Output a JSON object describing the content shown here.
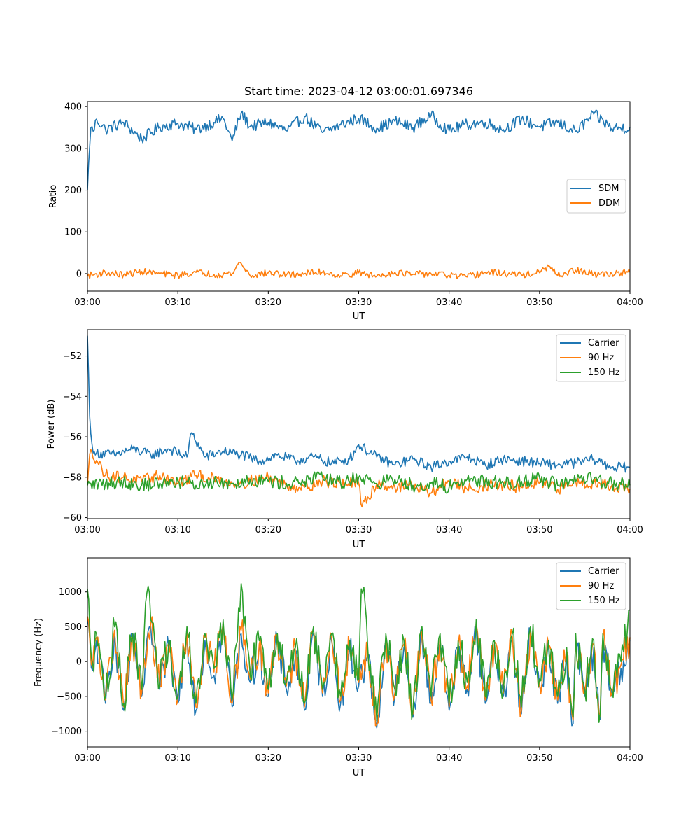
{
  "chart_data": [
    {
      "type": "line",
      "title": "Start time: 2023-04-12 03:00:01.697346",
      "xlabel": "UT",
      "ylabel": "Ratio",
      "xlim": [
        "03:00",
        "04:00"
      ],
      "ylim": [
        -42,
        412
      ],
      "xticks": [
        "03:00",
        "03:10",
        "03:20",
        "03:30",
        "03:40",
        "03:50",
        "04:00"
      ],
      "yticks": [
        0,
        100,
        200,
        300,
        400
      ],
      "ytick_labels": [
        "0",
        "100",
        "200",
        "300",
        "400"
      ],
      "legend_position": "center-right",
      "grid": false,
      "series": [
        {
          "name": "SDM",
          "color": "#1f77b4",
          "x": [
            "03:00",
            "03:00:20",
            "03:00:40",
            "03:01",
            "03:02",
            "03:04",
            "03:06",
            "03:08",
            "03:10",
            "03:12",
            "03:14",
            "03:15",
            "03:16",
            "03:17",
            "03:18",
            "03:20",
            "03:22",
            "03:24",
            "03:26",
            "03:28",
            "03:30",
            "03:32",
            "03:34",
            "03:36",
            "03:38",
            "03:40",
            "03:42",
            "03:44",
            "03:46",
            "03:48",
            "03:50",
            "03:52",
            "03:54",
            "03:56",
            "03:58",
            "04:00"
          ],
          "values": [
            200,
            350,
            340,
            370,
            345,
            362,
            322,
            352,
            360,
            345,
            362,
            372,
            318,
            385,
            352,
            362,
            342,
            376,
            338,
            356,
            372,
            348,
            365,
            350,
            378,
            342,
            358,
            362,
            345,
            370,
            352,
            362,
            340,
            382,
            348,
            350
          ],
          "noise": 14
        },
        {
          "name": "DDM",
          "color": "#ff7f0e",
          "x": [
            "03:00",
            "03:02",
            "03:04",
            "03:06",
            "03:08",
            "03:10",
            "03:12",
            "03:14",
            "03:16",
            "03:16:50",
            "03:18",
            "03:20",
            "03:22",
            "03:24",
            "03:26",
            "03:28",
            "03:30",
            "03:32",
            "03:34",
            "03:36",
            "03:38",
            "03:40",
            "03:42",
            "03:44",
            "03:46",
            "03:48",
            "03:50",
            "03:51",
            "03:52",
            "03:54",
            "03:56",
            "03:58",
            "04:00"
          ],
          "values": [
            -5,
            2,
            -3,
            5,
            0,
            -4,
            3,
            -2,
            0,
            28,
            -5,
            2,
            -3,
            0,
            4,
            -5,
            2,
            -6,
            3,
            -2,
            0,
            -4,
            -8,
            3,
            0,
            -3,
            2,
            18,
            -5,
            8,
            -2,
            0,
            3
          ],
          "noise": 8
        }
      ]
    },
    {
      "type": "line",
      "title": "",
      "xlabel": "UT",
      "ylabel": "Power (dB)",
      "xlim": [
        "03:00",
        "04:00"
      ],
      "ylim": [
        -60.05,
        -50.7
      ],
      "xticks": [
        "03:00",
        "03:10",
        "03:20",
        "03:30",
        "03:40",
        "03:50",
        "04:00"
      ],
      "yticks": [
        -60,
        -58,
        -56,
        -54,
        -52
      ],
      "ytick_labels": [
        "−60",
        "−58",
        "−56",
        "−54",
        "−52"
      ],
      "legend_position": "top-right",
      "grid": false,
      "series": [
        {
          "name": "Carrier",
          "color": "#1f77b4",
          "x": [
            "03:00",
            "03:00:15",
            "03:00:40",
            "03:01",
            "03:03",
            "03:05",
            "03:07",
            "03:09",
            "03:11",
            "03:11:30",
            "03:13",
            "03:15",
            "03:17",
            "03:19",
            "03:21",
            "03:23",
            "03:25",
            "03:27",
            "03:29",
            "03:30",
            "03:32",
            "03:34",
            "03:36",
            "03:38",
            "03:40",
            "03:42",
            "03:44",
            "03:46",
            "03:48",
            "03:50",
            "03:52",
            "03:54",
            "03:56",
            "03:58",
            "04:00"
          ],
          "values": [
            -51.0,
            -55.0,
            -57.0,
            -56.8,
            -56.9,
            -56.6,
            -56.9,
            -56.6,
            -57.0,
            -55.8,
            -57.0,
            -56.7,
            -56.9,
            -57.2,
            -56.9,
            -57.2,
            -57.0,
            -57.3,
            -57.1,
            -56.4,
            -57.0,
            -57.4,
            -57.1,
            -57.5,
            -57.2,
            -57.0,
            -57.4,
            -57.1,
            -57.2,
            -57.3,
            -57.4,
            -57.3,
            -57.1,
            -57.5,
            -57.5
          ],
          "noise": 0.25
        },
        {
          "name": "90 Hz",
          "color": "#ff7f0e",
          "x": [
            "03:00",
            "03:00:20",
            "03:02",
            "03:04",
            "03:06",
            "03:08",
            "03:10",
            "03:12",
            "03:14",
            "03:16",
            "03:18",
            "03:20",
            "03:22",
            "03:24",
            "03:26",
            "03:28",
            "03:30",
            "03:30:20",
            "03:32",
            "03:34",
            "03:36",
            "03:38",
            "03:40",
            "03:42",
            "03:44",
            "03:46",
            "03:48",
            "03:50",
            "03:52",
            "03:54",
            "03:56",
            "03:58",
            "04:00"
          ],
          "values": [
            -58.4,
            -56.6,
            -57.9,
            -58.0,
            -58.2,
            -57.9,
            -58.3,
            -57.9,
            -58.1,
            -58.3,
            -58.2,
            -58.0,
            -58.4,
            -58.5,
            -58.2,
            -58.3,
            -58.3,
            -59.5,
            -58.3,
            -58.5,
            -58.4,
            -58.8,
            -58.2,
            -58.6,
            -58.4,
            -58.4,
            -58.5,
            -58.3,
            -58.6,
            -58.2,
            -58.3,
            -58.4,
            -58.6
          ],
          "noise": 0.3
        },
        {
          "name": "150 Hz",
          "color": "#2ca02c",
          "x": [
            "03:00",
            "03:02",
            "03:04",
            "03:06",
            "03:08",
            "03:10",
            "03:12",
            "03:14",
            "03:16",
            "03:18",
            "03:20",
            "03:22",
            "03:24",
            "03:26",
            "03:28",
            "03:30",
            "03:32",
            "03:34",
            "03:36",
            "03:38",
            "03:40",
            "03:42",
            "03:44",
            "03:46",
            "03:48",
            "03:50",
            "03:52",
            "03:54",
            "03:56",
            "03:58",
            "04:00"
          ],
          "values": [
            -58.4,
            -58.3,
            -58.2,
            -58.4,
            -58.3,
            -58.2,
            -58.4,
            -58.2,
            -58.3,
            -58.1,
            -58.2,
            -58.3,
            -58.2,
            -58.0,
            -58.3,
            -58.0,
            -58.3,
            -58.1,
            -58.4,
            -58.3,
            -58.5,
            -58.1,
            -58.2,
            -58.3,
            -58.2,
            -58.0,
            -58.4,
            -58.2,
            -58.1,
            -58.3,
            -58.4
          ],
          "noise": 0.35
        }
      ]
    },
    {
      "type": "line",
      "title": "",
      "xlabel": "UT",
      "ylabel": "Frequency (Hz)",
      "xlim": [
        "03:00",
        "04:00"
      ],
      "ylim": [
        -1225,
        1490
      ],
      "xticks": [
        "03:00",
        "03:10",
        "03:20",
        "03:30",
        "03:40",
        "03:50",
        "04:00"
      ],
      "yticks": [
        -1000,
        -500,
        0,
        500,
        1000
      ],
      "ytick_labels": [
        "−1000",
        "−500",
        "0",
        "500",
        "1000"
      ],
      "legend_position": "top-right",
      "grid": false,
      "series": [
        {
          "name": "Carrier",
          "color": "#1f77b4",
          "x": [
            "03:00",
            "03:00:30",
            "03:01",
            "03:02",
            "03:03",
            "03:04",
            "03:05",
            "03:06",
            "03:07",
            "03:08",
            "03:09",
            "03:10",
            "03:11",
            "03:12",
            "03:13",
            "03:14",
            "03:15",
            "03:16",
            "03:17",
            "03:18",
            "03:19",
            "03:20",
            "03:21",
            "03:22",
            "03:23",
            "03:24",
            "03:25",
            "03:26",
            "03:27",
            "03:28",
            "03:29",
            "03:30",
            "03:31",
            "03:32",
            "03:33",
            "03:34",
            "03:35",
            "03:36",
            "03:37",
            "03:38",
            "03:39",
            "03:40",
            "03:41",
            "03:42",
            "03:43",
            "03:44",
            "03:45",
            "03:46",
            "03:47",
            "03:48",
            "03:49",
            "03:50",
            "03:51",
            "03:52",
            "03:53",
            "03:53:40",
            "03:54",
            "03:55",
            "03:56",
            "03:56:40",
            "03:57",
            "03:58",
            "03:59",
            "04:00"
          ],
          "values": [
            600,
            -200,
            300,
            -600,
            400,
            -700,
            300,
            -500,
            500,
            -400,
            200,
            -600,
            400,
            -700,
            300,
            -200,
            500,
            -650,
            400,
            -300,
            200,
            -500,
            300,
            -400,
            100,
            -700,
            400,
            -500,
            300,
            -600,
            200,
            -350,
            100,
            -950,
            300,
            -500,
            200,
            -800,
            400,
            -600,
            300,
            -700,
            200,
            -400,
            500,
            -600,
            200,
            -500,
            300,
            -750,
            400,
            -350,
            200,
            -600,
            100,
            -1090,
            300,
            -500,
            200,
            -1020,
            300,
            -500,
            -100,
            300
          ],
          "noise": 250
        },
        {
          "name": "90 Hz",
          "color": "#ff7f0e",
          "x": [
            "03:00",
            "03:00:30",
            "03:01",
            "03:02",
            "03:03",
            "03:04",
            "03:05",
            "03:06",
            "03:07",
            "03:08",
            "03:09",
            "03:10",
            "03:11",
            "03:12",
            "03:13",
            "03:14",
            "03:15",
            "03:16",
            "03:17",
            "03:18",
            "03:19",
            "03:20",
            "03:21",
            "03:22",
            "03:23",
            "03:24",
            "03:25",
            "03:26",
            "03:27",
            "03:28",
            "03:29",
            "03:30",
            "03:31",
            "03:32",
            "03:33",
            "03:34",
            "03:35",
            "03:36",
            "03:37",
            "03:38",
            "03:39",
            "03:40",
            "03:41",
            "03:42",
            "03:43",
            "03:44",
            "03:45",
            "03:46",
            "03:47",
            "03:48",
            "03:49",
            "03:50",
            "03:51",
            "03:52",
            "03:53",
            "03:53:40",
            "03:54",
            "03:55",
            "03:56",
            "03:56:40",
            "03:57",
            "03:58",
            "03:59",
            "04:00"
          ],
          "values": [
            650,
            -150,
            350,
            -550,
            450,
            -650,
            350,
            -450,
            550,
            -350,
            250,
            -550,
            450,
            -650,
            350,
            -150,
            550,
            -600,
            450,
            -250,
            250,
            -450,
            350,
            -350,
            150,
            -650,
            450,
            -450,
            350,
            -550,
            250,
            -300,
            150,
            -900,
            350,
            -450,
            250,
            -750,
            450,
            -550,
            350,
            -650,
            250,
            -350,
            550,
            -550,
            250,
            -450,
            350,
            -700,
            450,
            -300,
            250,
            -550,
            150,
            -1040,
            350,
            -450,
            250,
            -970,
            350,
            -450,
            -50,
            350
          ],
          "noise": 250
        },
        {
          "name": "150 Hz",
          "color": "#2ca02c",
          "x": [
            "03:00",
            "03:00:30",
            "03:01",
            "03:02",
            "03:03",
            "03:04",
            "03:05",
            "03:06",
            "03:06:30",
            "03:07",
            "03:08",
            "03:09",
            "03:10",
            "03:11",
            "03:12",
            "03:13",
            "03:14",
            "03:15",
            "03:16",
            "03:17",
            "03:18",
            "03:19",
            "03:20",
            "03:21",
            "03:22",
            "03:23",
            "03:24",
            "03:25",
            "03:26",
            "03:27",
            "03:28",
            "03:29",
            "03:30",
            "03:30:20",
            "03:31",
            "03:32",
            "03:33",
            "03:34",
            "03:35",
            "03:36",
            "03:37",
            "03:38",
            "03:39",
            "03:40",
            "03:41",
            "03:42",
            "03:43",
            "03:44",
            "03:45",
            "03:46",
            "03:47",
            "03:48",
            "03:49",
            "03:50",
            "03:51",
            "03:52",
            "03:53",
            "03:53:40",
            "03:54",
            "03:55",
            "03:56",
            "03:56:40",
            "03:57",
            "03:58",
            "03:59",
            "04:00"
          ],
          "values": [
            1040,
            -100,
            400,
            -500,
            500,
            -600,
            400,
            -400,
            1050,
            600,
            -300,
            300,
            -500,
            500,
            -600,
            400,
            -100,
            600,
            -550,
            1120,
            -200,
            300,
            -400,
            400,
            -300,
            200,
            -600,
            500,
            -400,
            400,
            -500,
            300,
            -250,
            1260,
            200,
            -850,
            400,
            -400,
            300,
            -700,
            500,
            -500,
            400,
            -600,
            300,
            -300,
            600,
            -500,
            300,
            -400,
            400,
            -650,
            500,
            -250,
            300,
            -500,
            200,
            -1000,
            400,
            -400,
            300,
            -930,
            400,
            -400,
            0,
            740
          ],
          "noise": 280
        }
      ]
    }
  ]
}
